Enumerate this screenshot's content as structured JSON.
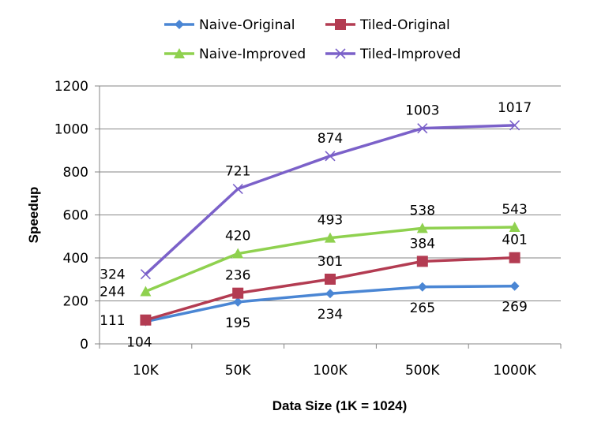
{
  "chart_data": {
    "type": "line",
    "categories": [
      "10K",
      "50K",
      "100K",
      "500K",
      "1000K"
    ],
    "series": [
      {
        "name": "Naive-Original",
        "values": [
          104,
          195,
          234,
          265,
          269
        ],
        "color": "#4a86d4",
        "marker": "diamond",
        "label_pos": "below"
      },
      {
        "name": "Tiled-Original",
        "values": [
          111,
          236,
          301,
          384,
          401
        ],
        "color": "#b33c52",
        "marker": "square",
        "label_pos": "above"
      },
      {
        "name": "Naive-Improved",
        "values": [
          244,
          420,
          493,
          538,
          543
        ],
        "color": "#8fd14f",
        "marker": "triangle",
        "label_pos": "above"
      },
      {
        "name": "Tiled-Improved",
        "values": [
          324,
          721,
          874,
          1003,
          1017
        ],
        "color": "#7b61c9",
        "marker": "x",
        "label_pos": "above"
      }
    ],
    "xlabel": "Data Size (1K = 1024)",
    "ylabel": "Speedup",
    "ylim": [
      0,
      1200
    ],
    "yticks": [
      0,
      200,
      400,
      600,
      800,
      1000,
      1200
    ],
    "grid": true,
    "legend": "top"
  }
}
